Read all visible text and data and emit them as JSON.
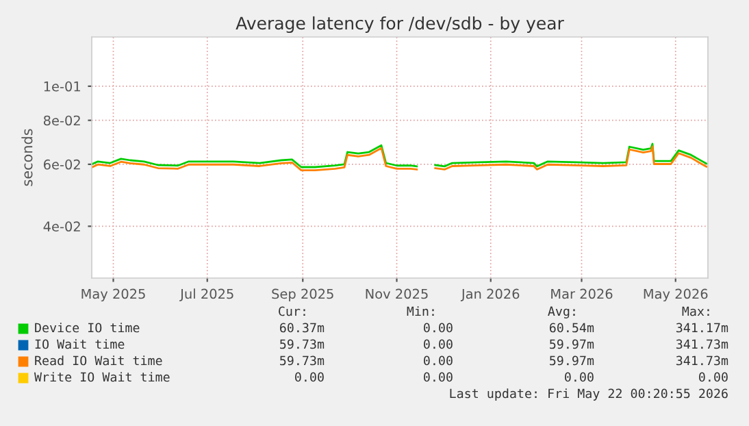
{
  "chart_data": {
    "type": "line",
    "title": "Average latency for /dev/sdb - by year",
    "ylabel": "seconds",
    "log": "y",
    "x": [
      "2025-04-17",
      "2025-04-21",
      "2025-04-29",
      "2025-05-06",
      "2025-05-12",
      "2025-05-21",
      "2025-05-30",
      "2025-06-12",
      "2025-06-19",
      "2025-06-30",
      "2025-07-18",
      "2025-08-04",
      "2025-08-18",
      "2025-08-25",
      "2025-08-31",
      "2025-09-09",
      "2025-09-22",
      "2025-09-28",
      "2025-09-30",
      "2025-10-07",
      "2025-10-14",
      "2025-10-22",
      "2025-10-25",
      "2025-11-01",
      "2025-11-10",
      "2025-11-14",
      "2025-11-19",
      "2025-11-26",
      "2025-12-02",
      "2025-12-07",
      "2025-12-25",
      "2026-01-11",
      "2026-01-29",
      "2026-01-31",
      "2026-02-07",
      "2026-02-25",
      "2026-03-15",
      "2026-03-30",
      "2026-04-01",
      "2026-04-10",
      "2026-04-15",
      "2026-04-16",
      "2026-04-17",
      "2026-04-28",
      "2026-05-03",
      "2026-05-11",
      "2026-05-18",
      "2026-05-21"
    ],
    "series": [
      {
        "name": "Device IO time",
        "color": "#00cc00",
        "values": [
          0.06,
          0.0611,
          0.0605,
          0.0622,
          0.0616,
          0.0611,
          0.0597,
          0.0595,
          0.0611,
          0.0611,
          0.0611,
          0.0605,
          0.0616,
          0.0619,
          0.0589,
          0.0589,
          0.0595,
          0.06,
          0.065,
          0.0644,
          0.065,
          0.0679,
          0.0605,
          0.0595,
          0.0595,
          0.0592,
          null,
          0.0597,
          0.0592,
          0.0605,
          0.0608,
          0.0611,
          0.0605,
          0.0592,
          0.0611,
          0.0608,
          0.0605,
          0.0608,
          0.0673,
          0.066,
          0.0666,
          0.0686,
          0.0613,
          0.0613,
          0.0657,
          0.0638,
          0.0613,
          0.0603
        ]
      },
      {
        "name": "IO Wait time",
        "color": "#0066b3",
        "values": [
          null,
          null,
          null,
          null,
          null,
          null,
          null,
          null,
          null,
          null,
          null,
          null,
          null,
          null,
          null,
          null,
          null,
          null,
          null,
          null,
          null,
          null,
          null,
          null,
          null,
          null,
          null,
          null,
          null,
          null,
          null,
          null,
          null,
          null,
          null,
          null,
          null,
          null,
          null,
          null,
          null,
          null,
          null,
          null,
          null,
          null,
          null,
          null
        ]
      },
      {
        "name": "Read IO Wait time",
        "color": "#ff8000",
        "values": [
          0.0588,
          0.0599,
          0.0593,
          0.061,
          0.0604,
          0.0599,
          0.0585,
          0.0583,
          0.0599,
          0.0599,
          0.0599,
          0.0593,
          0.0604,
          0.0607,
          0.0577,
          0.0577,
          0.0583,
          0.0588,
          0.0638,
          0.0632,
          0.0638,
          0.0667,
          0.0593,
          0.0583,
          0.0583,
          0.058,
          null,
          0.0585,
          0.058,
          0.0593,
          0.0596,
          0.0599,
          0.0593,
          0.058,
          0.0599,
          0.0596,
          0.0593,
          0.0596,
          0.0661,
          0.0648,
          0.0654,
          0.0674,
          0.0601,
          0.0601,
          0.0645,
          0.0626,
          0.0601,
          0.0591
        ]
      },
      {
        "name": "Write IO Wait time",
        "color": "#ffcc00",
        "values": [
          null,
          null,
          null,
          null,
          null,
          null,
          null,
          null,
          null,
          null,
          null,
          null,
          null,
          null,
          null,
          null,
          null,
          null,
          null,
          null,
          null,
          null,
          null,
          null,
          null,
          null,
          null,
          null,
          null,
          null,
          null,
          null,
          null,
          null,
          null,
          null,
          null,
          null,
          null,
          null,
          null,
          null,
          null,
          null,
          null,
          null,
          null,
          null
        ]
      }
    ],
    "xlim": [
      "2025-04-17",
      "2026-05-22"
    ],
    "xticks": [
      {
        "value": "2025-05-01",
        "label": "May 2025"
      },
      {
        "value": "2025-07-01",
        "label": "Jul 2025"
      },
      {
        "value": "2025-09-01",
        "label": "Sep 2025"
      },
      {
        "value": "2025-11-01",
        "label": "Nov 2025"
      },
      {
        "value": "2026-01-01",
        "label": "Jan 2026"
      },
      {
        "value": "2026-03-01",
        "label": "Mar 2026"
      },
      {
        "value": "2026-05-01",
        "label": "May 2026"
      }
    ],
    "ylim": [
      0.0285,
      0.138
    ],
    "yticks": [
      {
        "value": 0.04,
        "label": "4e-02"
      },
      {
        "value": 0.06,
        "label": "6e-02"
      },
      {
        "value": 0.08,
        "label": "8e-02"
      },
      {
        "value": 0.1,
        "label": "1e-01"
      }
    ],
    "grid": true,
    "legend": "bottom",
    "marker": "none",
    "line_style": "solid",
    "annotations": [
      "Cur:",
      "Min:",
      "Avg:",
      "Max:",
      "60.37m",
      "0.00",
      "60.54m",
      "341.17m",
      "59.73m",
      "0.00",
      "59.97m",
      "341.73m",
      "59.73m",
      "0.00",
      "59.97m",
      "341.73m",
      "0.00",
      "0.00",
      "0.00",
      "0.00",
      "Last update: Fri May 22 00:20:55 2026"
    ]
  }
}
